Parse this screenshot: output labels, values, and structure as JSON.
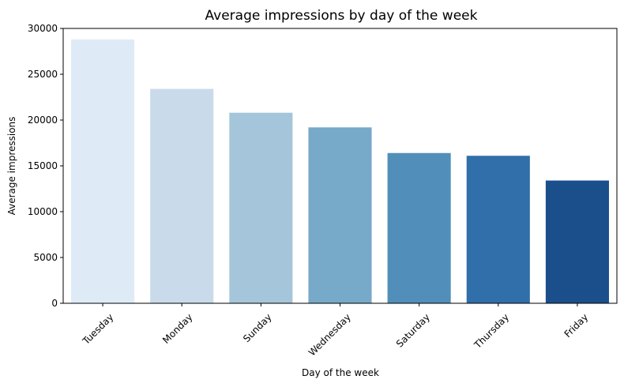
{
  "chart_data": {
    "type": "bar",
    "title": "Average impressions by day of the week",
    "xlabel": "Day of the week",
    "ylabel": "Average impressions",
    "categories": [
      "Tuesday",
      "Monday",
      "Sunday",
      "Wednesday",
      "Saturday",
      "Thursday",
      "Friday"
    ],
    "values": [
      28800,
      23400,
      20800,
      19200,
      16400,
      16100,
      13400
    ],
    "ylim": [
      0,
      30000
    ],
    "yticks": [
      0,
      5000,
      10000,
      15000,
      20000,
      25000,
      30000
    ],
    "grid": false,
    "legend": "none",
    "colors": [
      "#deebf7",
      "#c9dbeb",
      "#a5c6da",
      "#77a9c9",
      "#518fba",
      "#306fa9",
      "#1b4f8c"
    ]
  }
}
